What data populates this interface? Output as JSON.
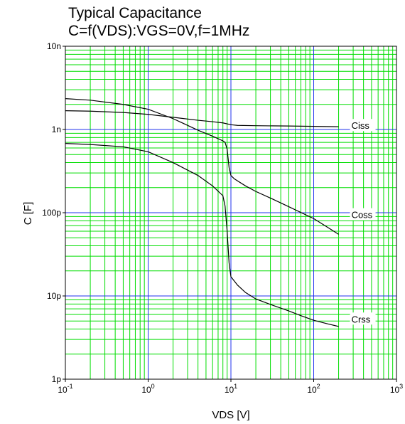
{
  "chart_data": {
    "type": "line",
    "title": "Typical Capacitance",
    "subtitle": "C=f(VDS):VGS=0V,f=1MHz",
    "xlabel": "VDS [V]",
    "ylabel": "C [F]",
    "x_scale": "log",
    "y_scale": "log",
    "xlim": [
      0.1,
      1000
    ],
    "ylim": [
      1e-12,
      1e-08
    ],
    "grid": true,
    "x_ticks": [
      {
        "value": 0.1,
        "base": "10",
        "exp": "-1"
      },
      {
        "value": 1,
        "base": "10",
        "exp": "0"
      },
      {
        "value": 10,
        "base": "10",
        "exp": "1"
      },
      {
        "value": 100,
        "base": "10",
        "exp": "2"
      },
      {
        "value": 1000,
        "base": "10",
        "exp": "3"
      }
    ],
    "y_ticks": [
      {
        "value": 1e-12,
        "label": "1p"
      },
      {
        "value": 1e-11,
        "label": "10p"
      },
      {
        "value": 1e-10,
        "label": "100p"
      },
      {
        "value": 1e-09,
        "label": "1n"
      },
      {
        "value": 1e-08,
        "label": "10n"
      }
    ],
    "series": [
      {
        "name": "Ciss",
        "label_at": {
          "x": 200,
          "y": 1.12e-09
        },
        "points": [
          [
            0.1,
            1.68e-09
          ],
          [
            0.2,
            1.66e-09
          ],
          [
            0.5,
            1.6e-09
          ],
          [
            1,
            1.52e-09
          ],
          [
            2,
            1.4e-09
          ],
          [
            4,
            1.29e-09
          ],
          [
            6,
            1.24e-09
          ],
          [
            8,
            1.2e-09
          ],
          [
            10,
            1.14e-09
          ],
          [
            12,
            1.12e-09
          ],
          [
            20,
            1.11e-09
          ],
          [
            50,
            1.1e-09
          ],
          [
            100,
            1.09e-09
          ],
          [
            200,
            1.08e-09
          ]
        ]
      },
      {
        "name": "Coss",
        "label_at": {
          "x": 200,
          "y": 9.5e-11
        },
        "points": [
          [
            0.1,
            2.35e-09
          ],
          [
            0.2,
            2.25e-09
          ],
          [
            0.5,
            2e-09
          ],
          [
            1,
            1.75e-09
          ],
          [
            2,
            1.35e-09
          ],
          [
            4,
            9.8e-10
          ],
          [
            6,
            8.3e-10
          ],
          [
            8,
            7.3e-10
          ],
          [
            8.5,
            7e-10
          ],
          [
            9,
            5.8e-10
          ],
          [
            9.5,
            3.5e-10
          ],
          [
            10,
            2.8e-10
          ],
          [
            11,
            2.55e-10
          ],
          [
            15,
            2.1e-10
          ],
          [
            20,
            1.8e-10
          ],
          [
            30,
            1.5e-10
          ],
          [
            50,
            1.18e-10
          ],
          [
            100,
            8.5e-11
          ],
          [
            150,
            6.6e-11
          ],
          [
            200,
            5.5e-11
          ]
        ]
      },
      {
        "name": "Crss",
        "label_at": {
          "x": 200,
          "y": 5.3e-12
        },
        "points": [
          [
            0.1,
            6.8e-10
          ],
          [
            0.2,
            6.6e-10
          ],
          [
            0.5,
            6.2e-10
          ],
          [
            1,
            5.4e-10
          ],
          [
            2,
            4e-10
          ],
          [
            4,
            2.8e-10
          ],
          [
            6,
            2.1e-10
          ],
          [
            8,
            1.6e-10
          ],
          [
            8.5,
            1.2e-10
          ],
          [
            9,
            6e-11
          ],
          [
            9.5,
            2.5e-11
          ],
          [
            10,
            1.7e-11
          ],
          [
            12,
            1.35e-11
          ],
          [
            15,
            1.1e-11
          ],
          [
            20,
            9.2e-12
          ],
          [
            30,
            7.9e-12
          ],
          [
            50,
            6.6e-12
          ],
          [
            70,
            5.8e-12
          ],
          [
            100,
            5.1e-12
          ],
          [
            150,
            4.6e-12
          ],
          [
            200,
            4.3e-12
          ]
        ]
      }
    ]
  }
}
